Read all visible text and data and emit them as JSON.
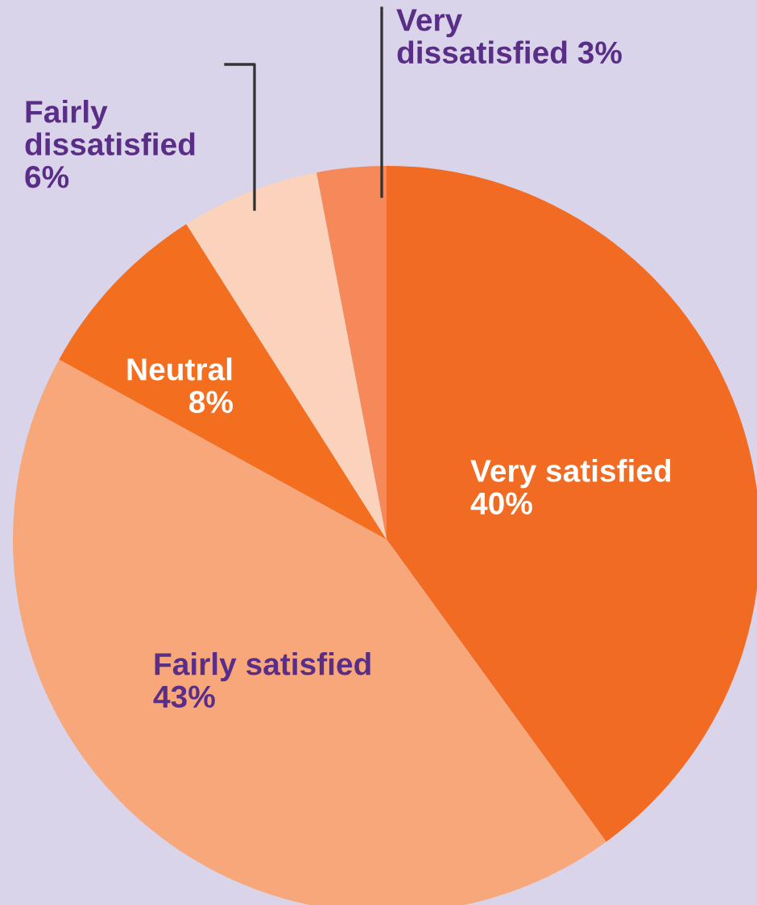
{
  "chart_data": {
    "type": "pie",
    "categories": [
      "Very satisfied",
      "Fairly satisfied",
      "Neutral",
      "Fairly dissatisfied",
      "Very dissatisfied"
    ],
    "values": [
      40,
      43,
      8,
      6,
      3
    ],
    "value_labels": [
      "40%",
      "43%",
      "8%",
      "6%",
      "3%"
    ],
    "colors": [
      "#f26b22",
      "#f7a77a",
      "#f36f1f",
      "#fbd2bc",
      "#f5895a"
    ],
    "legend": false
  }
}
